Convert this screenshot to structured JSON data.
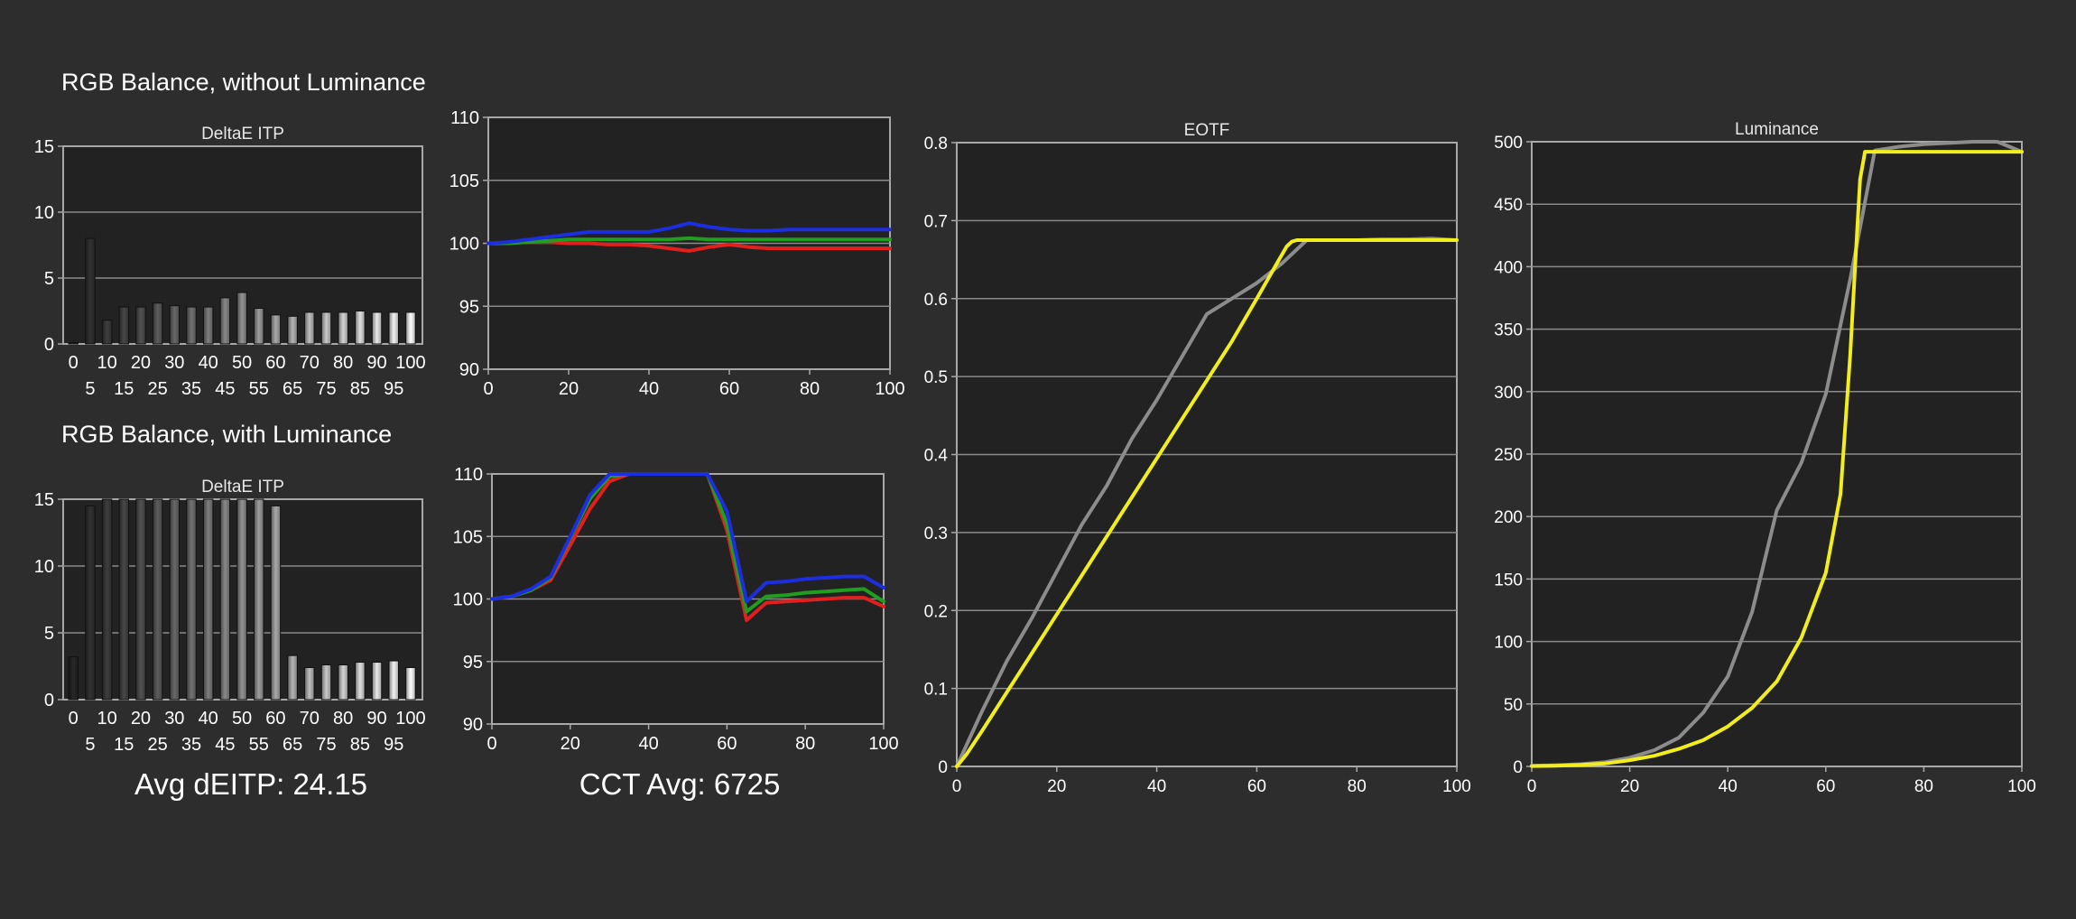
{
  "headings": {
    "without": "RGB Balance, without Luminance",
    "with": "RGB Balance, with Luminance"
  },
  "summary": {
    "avg_deitp": "Avg dEITP: 24.15",
    "cct_avg": "CCT Avg: 6725"
  },
  "colors": {
    "background": "#2d2d2d",
    "plot_bg": "#222222",
    "grid": "#8a8a8a",
    "red": "#e01f1f",
    "green": "#1f9e1f",
    "blue": "#1d2ee0",
    "yellow": "#f2ee1c",
    "gray": "#8c8c8c"
  },
  "chart_data": [
    {
      "id": "deltae-without",
      "type": "bar",
      "title": "DeltaE ITP",
      "categories": [
        0,
        5,
        10,
        15,
        20,
        25,
        30,
        35,
        40,
        45,
        50,
        55,
        60,
        65,
        70,
        75,
        80,
        85,
        90,
        95,
        100
      ],
      "values": [
        0.1,
        8.0,
        1.8,
        2.8,
        2.8,
        3.1,
        2.9,
        2.8,
        2.8,
        3.5,
        3.9,
        2.7,
        2.2,
        2.1,
        2.4,
        2.4,
        2.4,
        2.5,
        2.4,
        2.4,
        2.4
      ],
      "ylim": [
        0,
        15
      ],
      "yticks": [
        0,
        5,
        10,
        15
      ],
      "xticks_top": [
        0,
        10,
        20,
        30,
        40,
        50,
        60,
        70,
        80,
        90,
        100
      ],
      "xticks_bottom": [
        5,
        15,
        25,
        35,
        45,
        55,
        65,
        75,
        85,
        95
      ]
    },
    {
      "id": "rgb-without",
      "type": "line",
      "title": "",
      "xlim": [
        0,
        100
      ],
      "ylim": [
        90,
        110
      ],
      "xticks": [
        0,
        20,
        40,
        60,
        80,
        100
      ],
      "yticks": [
        90,
        95,
        100,
        105,
        110
      ],
      "x": [
        0,
        5,
        10,
        15,
        20,
        25,
        30,
        35,
        40,
        45,
        50,
        55,
        60,
        65,
        70,
        75,
        80,
        85,
        90,
        95,
        100
      ],
      "series": [
        {
          "color": "red",
          "values": [
            100,
            100,
            100.1,
            100.1,
            100,
            100,
            99.9,
            99.9,
            99.8,
            99.6,
            99.4,
            99.7,
            99.9,
            99.7,
            99.6,
            99.6,
            99.6,
            99.6,
            99.6,
            99.6,
            99.6
          ]
        },
        {
          "color": "green",
          "values": [
            100,
            100,
            100.1,
            100.2,
            100.3,
            100.3,
            100.3,
            100.3,
            100.3,
            100.3,
            100.4,
            100.3,
            100.3,
            100.3,
            100.3,
            100.3,
            100.3,
            100.3,
            100.3,
            100.3,
            100.3
          ]
        },
        {
          "color": "blue",
          "values": [
            100,
            100.1,
            100.3,
            100.5,
            100.7,
            100.9,
            100.9,
            100.9,
            100.9,
            101.2,
            101.6,
            101.3,
            101.1,
            101.0,
            101.0,
            101.1,
            101.1,
            101.1,
            101.1,
            101.1,
            101.1
          ]
        }
      ]
    },
    {
      "id": "deltae-with",
      "type": "bar",
      "title": "DeltaE ITP",
      "categories": [
        0,
        5,
        10,
        15,
        20,
        25,
        30,
        35,
        40,
        45,
        50,
        55,
        60,
        65,
        70,
        75,
        80,
        85,
        90,
        95,
        100
      ],
      "values": [
        3.2,
        14.5,
        15,
        15,
        15,
        15,
        15,
        15,
        15,
        15,
        15,
        15,
        14.5,
        3.3,
        2.4,
        2.6,
        2.6,
        2.8,
        2.8,
        2.9,
        2.4
      ],
      "ylim": [
        0,
        15
      ],
      "yticks": [
        0,
        5,
        10,
        15
      ],
      "xticks_top": [
        0,
        10,
        20,
        30,
        40,
        50,
        60,
        70,
        80,
        90,
        100
      ],
      "xticks_bottom": [
        5,
        15,
        25,
        35,
        45,
        55,
        65,
        75,
        85,
        95
      ]
    },
    {
      "id": "rgb-with",
      "type": "line",
      "title": "",
      "xlim": [
        0,
        100
      ],
      "ylim": [
        90,
        110
      ],
      "xticks": [
        0,
        20,
        40,
        60,
        80,
        100
      ],
      "yticks": [
        90,
        95,
        100,
        105,
        110
      ],
      "x": [
        0,
        5,
        10,
        15,
        20,
        25,
        30,
        35,
        40,
        45,
        50,
        55,
        60,
        65,
        70,
        75,
        80,
        85,
        90,
        95,
        100
      ],
      "series": [
        {
          "color": "red",
          "values": [
            100,
            100.2,
            100.7,
            101.5,
            104.3,
            107.2,
            109.4,
            110,
            110,
            110,
            110,
            110,
            105.5,
            98.3,
            99.7,
            99.8,
            99.9,
            100,
            100.1,
            100.1,
            99.4
          ]
        },
        {
          "color": "green",
          "values": [
            100,
            100.2,
            100.7,
            101.7,
            104.9,
            108.0,
            109.8,
            110,
            110,
            110,
            110,
            110,
            106,
            99.0,
            100.2,
            100.3,
            100.5,
            100.6,
            100.7,
            100.8,
            99.8
          ]
        },
        {
          "color": "blue",
          "values": [
            100,
            100.2,
            100.8,
            101.8,
            105.0,
            108.3,
            110,
            110,
            110,
            110,
            110,
            110,
            107,
            99.8,
            101.3,
            101.4,
            101.6,
            101.7,
            101.8,
            101.8,
            100.9
          ]
        }
      ]
    },
    {
      "id": "eotf",
      "type": "line",
      "title": "EOTF",
      "xlim": [
        0,
        100
      ],
      "ylim": [
        0,
        0.8
      ],
      "xticks": [
        0,
        20,
        40,
        60,
        80,
        100
      ],
      "yticks": [
        0,
        0.1,
        0.2,
        0.3,
        0.4,
        0.5,
        0.6,
        0.7,
        0.8
      ],
      "series": [
        {
          "color": "gray",
          "x": [
            0,
            5,
            10,
            15,
            20,
            25,
            30,
            35,
            40,
            45,
            50,
            55,
            60,
            65,
            70,
            75,
            80,
            85,
            90,
            95,
            100
          ],
          "values": [
            0,
            0.07,
            0.135,
            0.19,
            0.25,
            0.31,
            0.36,
            0.42,
            0.47,
            0.525,
            0.58,
            0.6,
            0.62,
            0.645,
            0.675,
            0.675,
            0.675,
            0.676,
            0.676,
            0.677,
            0.675
          ]
        },
        {
          "color": "yellow",
          "x": [
            0,
            2,
            5,
            10,
            15,
            20,
            25,
            30,
            35,
            40,
            45,
            50,
            55,
            60,
            64,
            66,
            67,
            68,
            70,
            75,
            80,
            90,
            100
          ],
          "values": [
            0,
            0.016,
            0.045,
            0.095,
            0.145,
            0.195,
            0.245,
            0.295,
            0.345,
            0.395,
            0.445,
            0.495,
            0.545,
            0.6,
            0.645,
            0.667,
            0.673,
            0.675,
            0.675,
            0.675,
            0.675,
            0.675,
            0.675
          ]
        }
      ]
    },
    {
      "id": "luminance",
      "type": "line",
      "title": "Luminance",
      "xlim": [
        0,
        100
      ],
      "ylim": [
        0,
        500
      ],
      "xticks": [
        0,
        20,
        40,
        60,
        80,
        100
      ],
      "yticks": [
        0,
        50,
        100,
        150,
        200,
        250,
        300,
        350,
        400,
        450,
        500
      ],
      "series": [
        {
          "color": "gray",
          "x": [
            0,
            5,
            10,
            15,
            20,
            25,
            30,
            35,
            40,
            45,
            50,
            55,
            60,
            65,
            70,
            75,
            80,
            85,
            90,
            95,
            100
          ],
          "values": [
            0.5,
            1,
            1.8,
            3.5,
            7,
            13,
            23,
            43,
            72,
            124,
            205,
            243,
            298,
            390,
            493,
            496,
            498,
            499,
            500,
            500,
            492
          ]
        },
        {
          "color": "yellow",
          "x": [
            0,
            5,
            10,
            15,
            20,
            25,
            30,
            35,
            40,
            45,
            50,
            55,
            60,
            63,
            65,
            66,
            67,
            68,
            70,
            80,
            90,
            100
          ],
          "values": [
            0.3,
            0.6,
            1.2,
            2.4,
            5,
            8.5,
            14,
            21,
            32,
            47,
            68,
            103,
            155,
            218,
            330,
            402,
            470,
            492,
            492,
            492,
            492,
            492
          ]
        }
      ]
    }
  ]
}
